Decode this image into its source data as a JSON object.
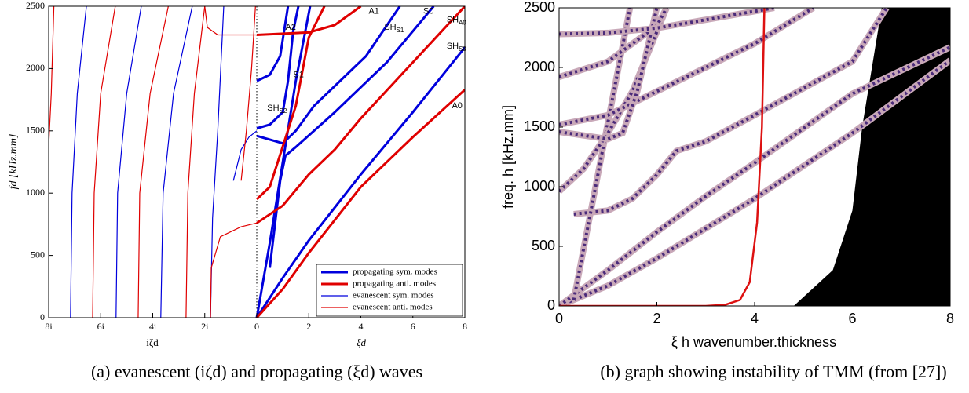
{
  "chart_data": [
    {
      "type": "line",
      "caption": "(a) evanescent (iζd) and propagating (ξd) waves",
      "ylabel": "fd [kHz.mm]",
      "xlabel_left": "iζd",
      "xlabel_right": "ξd",
      "xlim": [
        -8,
        8
      ],
      "ylim": [
        0,
        2500
      ],
      "xticks": [
        {
          "value": -8,
          "label": "8i"
        },
        {
          "value": -6,
          "label": "6i"
        },
        {
          "value": -4,
          "label": "4i"
        },
        {
          "value": -2,
          "label": "2i"
        },
        0,
        2,
        4,
        6,
        8
      ],
      "yticks": [
        0,
        500,
        1000,
        1500,
        2000,
        2500
      ],
      "legend": "lower right",
      "series": [
        {
          "name": "propagating sym. modes",
          "color": "#0000dd",
          "width": 3,
          "curves": [
            {
              "x": [
                0,
                0.5,
                1,
                1.5,
                2.05
              ],
              "y": [
                0,
                600,
                1250,
                1900,
                2500
              ]
            },
            {
              "x": [
                0,
                1,
                2,
                4,
                6,
                8
              ],
              "y": [
                0,
                320,
                620,
                1150,
                1650,
                2170
              ]
            },
            {
              "x": [
                0.5,
                0.9,
                1.1,
                1.5,
                3,
                5,
                6.8
              ],
              "y": [
                400,
                1100,
                1300,
                1370,
                1650,
                2050,
                2500
              ]
            },
            {
              "x": [
                0,
                0.5,
                1,
                1.2,
                1.4,
                1.6
              ],
              "y": [
                1520,
                1550,
                1650,
                1900,
                2300,
                2500
              ]
            },
            {
              "x": [
                0,
                1,
                1.5,
                2.2,
                4.2,
                5.5
              ],
              "y": [
                1460,
                1400,
                1500,
                1700,
                2100,
                2500
              ]
            },
            {
              "x": [
                0,
                0.5,
                0.9,
                1.2
              ],
              "y": [
                1900,
                1950,
                2100,
                2500
              ]
            }
          ]
        },
        {
          "name": "propagating anti. modes",
          "color": "#e00000",
          "width": 3,
          "curves": [
            {
              "x": [
                0,
                1,
                2,
                4,
                6,
                8
              ],
              "y": [
                0,
                230,
                520,
                1050,
                1450,
                1830
              ]
            },
            {
              "x": [
                0,
                0.5,
                1.5,
                2,
                2.6
              ],
              "y": [
                950,
                1050,
                1700,
                2250,
                2500
              ]
            },
            {
              "x": [
                0,
                1,
                2,
                3,
                4,
                6,
                8
              ],
              "y": [
                760,
                900,
                1150,
                1350,
                1600,
                2050,
                2500
              ]
            },
            {
              "x": [
                0,
                2,
                3,
                4
              ],
              "y": [
                2270,
                2290,
                2350,
                2500
              ]
            }
          ]
        },
        {
          "name": "evanescent sym. modes",
          "color": "#0000dd",
          "width": 1.2,
          "curves": [
            {
              "x": [
                -7.16,
                -7.1,
                -6.9,
                -6.55
              ],
              "y": [
                0,
                1000,
                1800,
                2500
              ]
            },
            {
              "x": [
                -5.41,
                -5.35,
                -5.0,
                -4.44
              ],
              "y": [
                0,
                1000,
                1800,
                2500
              ]
            },
            {
              "x": [
                -3.69,
                -3.6,
                -3.2,
                -2.48
              ],
              "y": [
                0,
                1000,
                1800,
                2500
              ]
            },
            {
              "x": [
                -1.78,
                -1.7,
                -1.5,
                -1.27
              ],
              "y": [
                0,
                800,
                1500,
                2500
              ]
            },
            {
              "x": [
                -0.9,
                -0.6,
                -0.3,
                0
              ],
              "y": [
                1100,
                1350,
                1450,
                1500
              ]
            }
          ]
        },
        {
          "name": "evanescent anti. modes",
          "color": "#e00000",
          "width": 1.2,
          "curves": [
            {
              "x": [
                -8,
                -7.9,
                -7.8
              ],
              "y": [
                1380,
                1800,
                2500
              ]
            },
            {
              "x": [
                -6.31,
                -6.25,
                -6.0,
                -5.44
              ],
              "y": [
                0,
                1000,
                1800,
                2500
              ]
            },
            {
              "x": [
                -4.56,
                -4.5,
                -4.1,
                -3.4
              ],
              "y": [
                0,
                1000,
                1800,
                2500
              ]
            },
            {
              "x": [
                -2.72,
                -2.65,
                -2.4,
                -2.0
              ],
              "y": [
                0,
                1000,
                1800,
                2500
              ]
            },
            {
              "x": [
                -2.0,
                -1.9,
                -1.5,
                -0.5,
                0
              ],
              "y": [
                2500,
                2330,
                2270,
                2270,
                2270
              ]
            },
            {
              "x": [
                -1.78,
                -1.75,
                -1.4,
                -0.6,
                0
              ],
              "y": [
                0,
                400,
                650,
                730,
                760
              ]
            },
            {
              "x": [
                -0.6,
                -0.4,
                -0.2,
                -0.05
              ],
              "y": [
                1100,
                1500,
                2000,
                2500
              ]
            }
          ]
        }
      ],
      "annotations": [
        {
          "text": "A0",
          "x": 7.5,
          "y": 1700
        },
        {
          "text": "SH",
          "sub": "S0",
          "x": 7.3,
          "y": 2180
        },
        {
          "text": "SH",
          "sub": "A0",
          "x": 7.3,
          "y": 2390
        },
        {
          "text": "S0",
          "x": 6.4,
          "y": 2460
        },
        {
          "text": "SH",
          "sub": "S1",
          "x": 4.9,
          "y": 2330
        },
        {
          "text": "A1",
          "x": 4.3,
          "y": 2460
        },
        {
          "text": "A2",
          "x": 1.1,
          "y": 2330
        },
        {
          "text": "S1",
          "x": 1.4,
          "y": 1950
        },
        {
          "text": "SH",
          "sub": "S2",
          "x": 0.4,
          "y": 1680
        }
      ]
    },
    {
      "type": "line",
      "caption": "(b) graph showing instability of TMM (from [27])",
      "ylabel": "freq. h [kHz.mm]",
      "xlabel": "ξ h wavenumber.thickness",
      "xlim": [
        0,
        8
      ],
      "ylim": [
        0,
        2500
      ],
      "xticks": [
        0,
        2,
        4,
        6,
        8
      ],
      "yticks": [
        0,
        500,
        1000,
        1500,
        2000,
        2500
      ],
      "region": {
        "color": "#000000",
        "x": [
          4.8,
          5.6,
          6.0,
          6.2,
          6.4,
          6.6,
          8,
          8
        ],
        "y": [
          0,
          300,
          800,
          1500,
          2000,
          2500,
          2500,
          0
        ]
      },
      "series": [
        {
          "color": "#4a2a7a",
          "curves": [
            {
              "x": [
                0,
                1,
                2,
                3,
                4,
                6,
                8
              ],
              "y": [
                0,
                170,
                400,
                650,
                900,
                1450,
                2060
              ]
            },
            {
              "x": [
                0,
                1,
                2,
                3,
                4,
                6,
                8
              ],
              "y": [
                0,
                300,
                620,
                920,
                1200,
                1780,
                2170
              ]
            },
            {
              "x": [
                0.3,
                1,
                1.5,
                2,
                2.4,
                3,
                4,
                6,
                6.7
              ],
              "y": [
                770,
                800,
                900,
                1100,
                1300,
                1380,
                1600,
                2050,
                2500
              ]
            },
            {
              "x": [
                0.3,
                1.45
              ],
              "y": [
                50,
                2500
              ]
            },
            {
              "x": [
                0,
                0.5,
                1,
                1.5,
                2.2
              ],
              "y": [
                960,
                1150,
                1450,
                1800,
                2500
              ]
            },
            {
              "x": [
                0,
                1,
                2,
                3,
                4,
                5.2
              ],
              "y": [
                1520,
                1600,
                1800,
                2000,
                2200,
                2500
              ]
            },
            {
              "x": [
                0,
                1,
                1.3,
                1.6,
                2
              ],
              "y": [
                1460,
                1400,
                1450,
                1800,
                2500
              ]
            },
            {
              "x": [
                0,
                1,
                2,
                2.2
              ],
              "y": [
                1920,
                2050,
                2350,
                2500
              ]
            },
            {
              "x": [
                0,
                1,
                2,
                3,
                4.4
              ],
              "y": [
                2280,
                2290,
                2330,
                2400,
                2500
              ]
            }
          ]
        },
        {
          "color": "#dd1111",
          "curves": [
            {
              "x": [
                0,
                3,
                3.4,
                3.7,
                3.9,
                4.05,
                4.15,
                4.2
              ],
              "y": [
                0,
                0,
                10,
                50,
                200,
                700,
                1500,
                2500
              ]
            }
          ]
        }
      ]
    }
  ]
}
